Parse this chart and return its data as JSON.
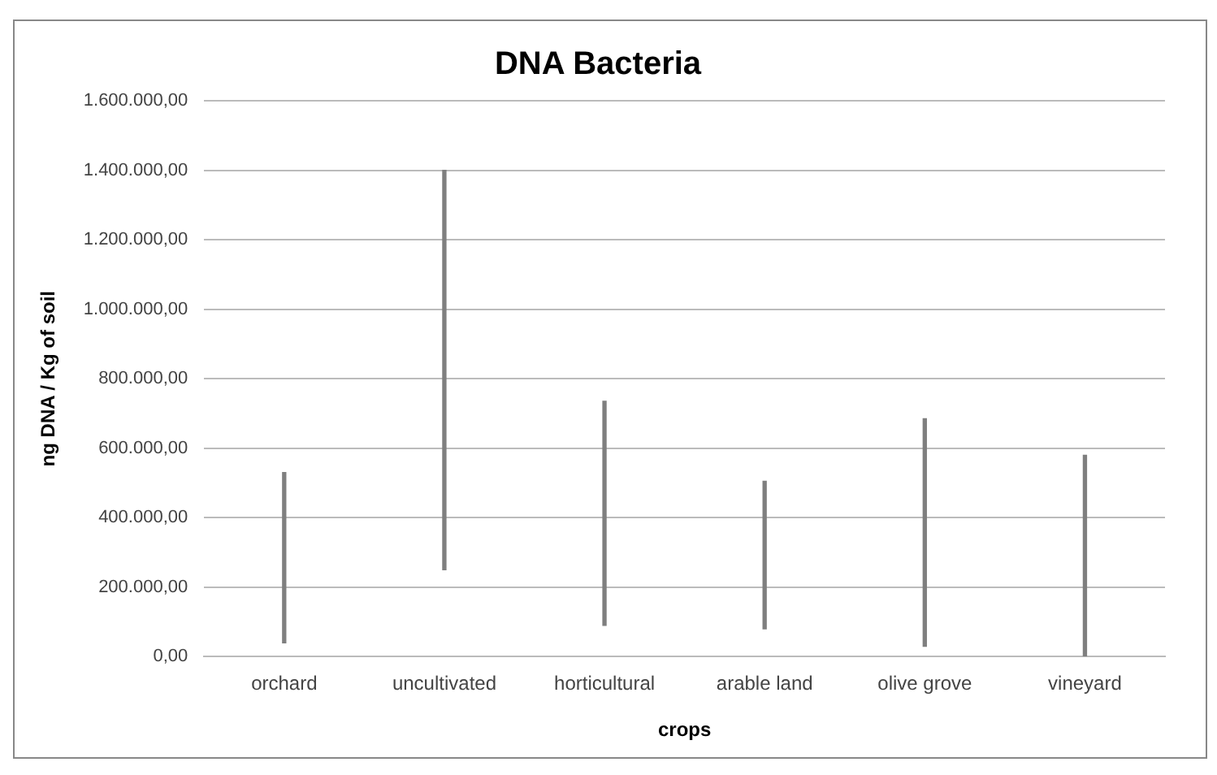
{
  "chart_data": {
    "type": "bar",
    "title": "DNA Bacteria",
    "xlabel": "crops",
    "ylabel": "ng DNA / Kg of soil",
    "categories": [
      "orchard",
      "uncultivated",
      "horticultural",
      "arable land",
      "olive grove",
      "vineyard"
    ],
    "base": [
      40000,
      250000,
      90000,
      80000,
      30000,
      0
    ],
    "values": [
      490000,
      1150000,
      645000,
      425000,
      655000,
      580000
    ],
    "color": "#7f7f7f",
    "ylim": [
      0,
      1600000
    ],
    "yticks": [
      {
        "value": 0,
        "label": "0,00"
      },
      {
        "value": 200000,
        "label": "200.000,00"
      },
      {
        "value": 400000,
        "label": "400.000,00"
      },
      {
        "value": 600000,
        "label": "600.000,00"
      },
      {
        "value": 800000,
        "label": "800.000,00"
      },
      {
        "value": 1000000,
        "label": "1.000.000,00"
      },
      {
        "value": 1200000,
        "label": "1.200.000,00"
      },
      {
        "value": 1400000,
        "label": "1.400.000,00"
      },
      {
        "value": 1600000,
        "label": "1.600.000,00"
      }
    ],
    "grid": "y",
    "legend": false
  }
}
